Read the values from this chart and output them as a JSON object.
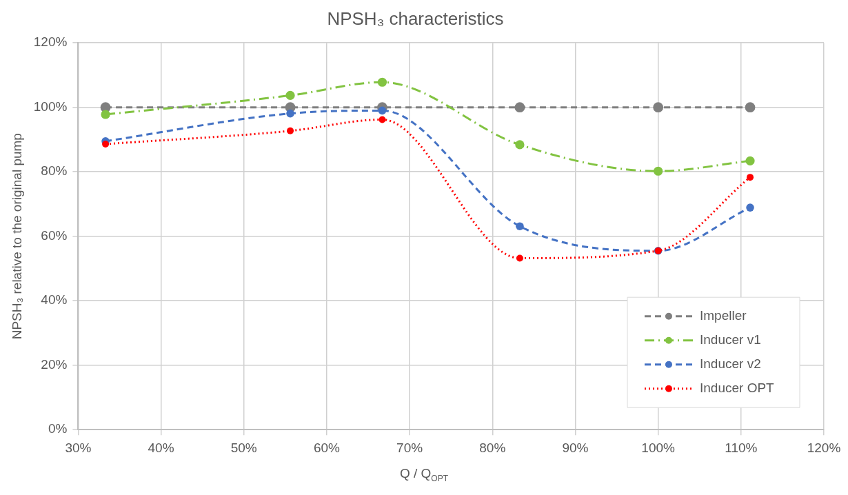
{
  "chart_data": {
    "type": "line",
    "title": "NPSH₃ characteristics",
    "xlabel": "Q / Q$_{OPT}$",
    "ylabel": "NPSH₃ relative to the original pump",
    "x": [
      33.3,
      55.6,
      66.7,
      83.3,
      100,
      111.1
    ],
    "series": [
      {
        "name": "Impeller",
        "color": "#7f7f7f",
        "line_style": "dashed",
        "values": [
          100,
          100,
          100,
          100,
          100,
          100
        ]
      },
      {
        "name": "Inducer v1",
        "color": "#82c341",
        "line_style": "dashdot",
        "values": [
          97.8,
          103.7,
          107.8,
          88.4,
          80.2,
          83.4
        ]
      },
      {
        "name": "Inducer v2",
        "color": "#4472c4",
        "line_style": "dashed",
        "values": [
          89.5,
          98.1,
          99,
          63.1,
          55.5,
          68.9
        ]
      },
      {
        "name": "Inducer OPT",
        "color": "#ff0000",
        "line_style": "dotted",
        "values": [
          88.6,
          92.7,
          96.2,
          53.2,
          55.5,
          78.3
        ]
      }
    ],
    "xlim": [
      30,
      120
    ],
    "xticks": [
      {
        "value": 30,
        "label": "30%"
      },
      {
        "value": 40,
        "label": "40%"
      },
      {
        "value": 50,
        "label": "50%"
      },
      {
        "value": 60,
        "label": "60%"
      },
      {
        "value": 70,
        "label": "70%"
      },
      {
        "value": 80,
        "label": "80%"
      },
      {
        "value": 90,
        "label": "90%"
      },
      {
        "value": 100,
        "label": "100%"
      },
      {
        "value": 110,
        "label": "110%"
      },
      {
        "value": 120,
        "label": "120%"
      }
    ],
    "ylim": [
      0,
      120
    ],
    "yticks": [
      {
        "value": 0,
        "label": "0%"
      },
      {
        "value": 20,
        "label": "20%"
      },
      {
        "value": 40,
        "label": "40%"
      },
      {
        "value": 60,
        "label": "60%"
      },
      {
        "value": 80,
        "label": "80%"
      },
      {
        "value": 100,
        "label": "100%"
      },
      {
        "value": 120,
        "label": "120%"
      }
    ],
    "grid": true,
    "legend": "bottom right",
    "marker": "circle"
  }
}
